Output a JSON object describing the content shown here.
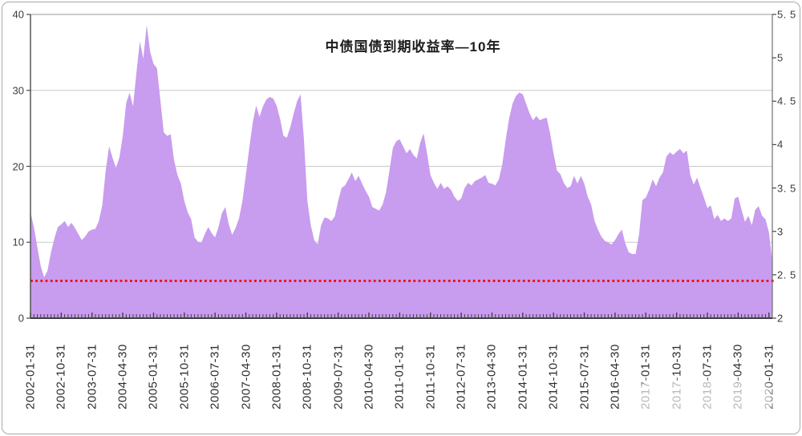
{
  "chart_data": {
    "type": "area",
    "title": "中债国债到期收益率—10年",
    "series": [
      {
        "name": "中债国债到期收益率—10年",
        "x_monthly_start": "2002-01",
        "x_monthly_end": "2020-02",
        "axis": "right",
        "unit": "%",
        "values": [
          3.22,
          3.05,
          2.82,
          2.6,
          2.47,
          2.55,
          2.76,
          2.92,
          3.05,
          3.08,
          3.12,
          3.05,
          3.1,
          3.04,
          2.97,
          2.9,
          2.94,
          3.0,
          3.02,
          3.03,
          3.12,
          3.3,
          3.7,
          3.98,
          3.85,
          3.73,
          3.85,
          4.1,
          4.48,
          4.6,
          4.44,
          4.83,
          5.19,
          4.99,
          5.38,
          5.07,
          4.93,
          4.88,
          4.51,
          4.14,
          4.1,
          4.12,
          3.82,
          3.65,
          3.55,
          3.35,
          3.22,
          3.14,
          2.93,
          2.88,
          2.87,
          2.97,
          3.05,
          2.98,
          2.93,
          3.05,
          3.21,
          3.28,
          3.08,
          2.96,
          3.04,
          3.15,
          3.35,
          3.65,
          3.96,
          4.25,
          4.45,
          4.32,
          4.44,
          4.52,
          4.55,
          4.53,
          4.45,
          4.3,
          4.1,
          4.08,
          4.2,
          4.36,
          4.5,
          4.58,
          4.05,
          3.35,
          3.07,
          2.9,
          2.85,
          3.07,
          3.16,
          3.15,
          3.12,
          3.17,
          3.35,
          3.5,
          3.53,
          3.6,
          3.68,
          3.58,
          3.64,
          3.55,
          3.47,
          3.4,
          3.28,
          3.26,
          3.24,
          3.31,
          3.45,
          3.7,
          3.96,
          4.04,
          4.06,
          3.98,
          3.9,
          3.95,
          3.88,
          3.84,
          4.02,
          4.13,
          3.9,
          3.65,
          3.56,
          3.49,
          3.56,
          3.49,
          3.52,
          3.48,
          3.4,
          3.35,
          3.38,
          3.5,
          3.56,
          3.53,
          3.58,
          3.6,
          3.62,
          3.65,
          3.56,
          3.55,
          3.53,
          3.6,
          3.77,
          4.05,
          4.3,
          4.47,
          4.56,
          4.6,
          4.58,
          4.47,
          4.36,
          4.28,
          4.33,
          4.28,
          4.3,
          4.31,
          4.13,
          3.9,
          3.7,
          3.66,
          3.56,
          3.5,
          3.52,
          3.64,
          3.55,
          3.64,
          3.55,
          3.4,
          3.31,
          3.12,
          3.02,
          2.94,
          2.89,
          2.87,
          2.85,
          2.9,
          2.97,
          3.02,
          2.86,
          2.76,
          2.74,
          2.74,
          2.96,
          3.36,
          3.39,
          3.48,
          3.6,
          3.52,
          3.62,
          3.68,
          3.86,
          3.91,
          3.88,
          3.92,
          3.95,
          3.9,
          3.93,
          3.65,
          3.54,
          3.62,
          3.5,
          3.39,
          3.27,
          3.3,
          3.14,
          3.19,
          3.12,
          3.15,
          3.12,
          3.15,
          3.38,
          3.4,
          3.25,
          3.11,
          3.18,
          3.07,
          3.25,
          3.29,
          3.18,
          3.14,
          2.99,
          2.65
        ]
      }
    ],
    "x_axis": {
      "tick_labels": [
        "2002-01-31",
        "2002-10-31",
        "2003-07-31",
        "2004-04-30",
        "2005-01-31",
        "2005-10-31",
        "2006-07-31",
        "2007-04-30",
        "2008-01-31",
        "2008-10-31",
        "2009-07-31",
        "2010-04-30",
        "2011-01-31",
        "2011-10-31",
        "2012-07-31",
        "2013-04-30",
        "2014-01-31",
        "2014-10-31",
        "2015-07-31",
        "2016-04-30",
        "2017-01-31",
        "2017-10-31",
        "2018-07-31",
        "2019-04-30",
        "2020-01-31"
      ],
      "tick_every_n_points": 9,
      "minor_tick_every_point": true
    },
    "left_axis": {
      "min": 0,
      "max": 40,
      "tick_labels": [
        "0",
        "10",
        "20",
        "30",
        "40"
      ]
    },
    "right_axis": {
      "min": 2,
      "max": 5.5,
      "tick_labels": [
        "2",
        "2. 5",
        "3",
        "3. 5",
        "4",
        "4. 5",
        "5",
        "5. 5"
      ]
    },
    "reference_line": {
      "value": 2.43,
      "color": "#ff0000",
      "style": "dotted"
    },
    "grid": {
      "horizontal_at_left_ticks": [
        10,
        20,
        30
      ],
      "vertical": false
    },
    "legend_position": "none",
    "colors": {
      "area_fill": "#c89cef",
      "grid_line": "#c9c9c9",
      "axis_line": "#6e6e6e",
      "tick_text": "#3c3c3c",
      "title_text": "#1c1c1c"
    }
  }
}
